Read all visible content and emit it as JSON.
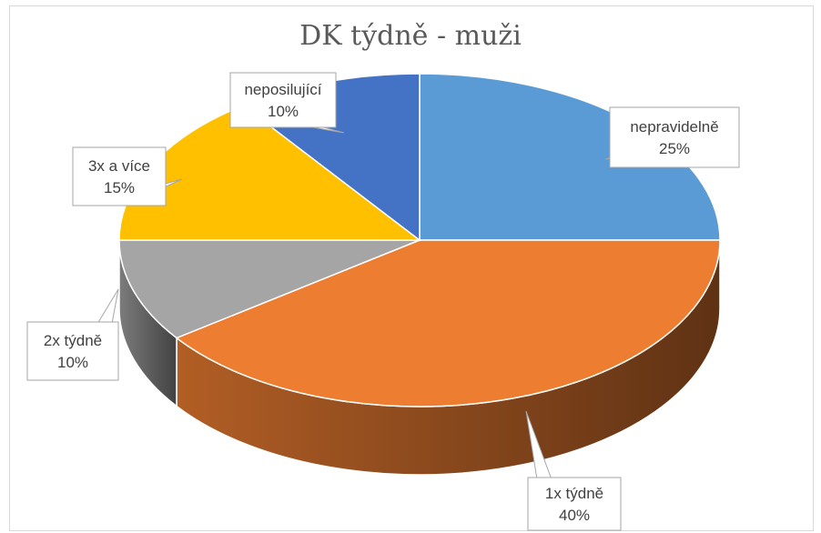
{
  "chart_data": {
    "type": "pie",
    "title": "DK týdně - muži",
    "slices": [
      {
        "label": "nepravidelně",
        "value": 25,
        "percent_label": "25%",
        "color": "#5b9bd5"
      },
      {
        "label": "1x týdně",
        "value": 40,
        "percent_label": "40%",
        "color": "#ed7d31"
      },
      {
        "label": "2x týdně",
        "value": 10,
        "percent_label": "10%",
        "color": "#a5a5a5"
      },
      {
        "label": "3x a více",
        "value": 15,
        "percent_label": "15%",
        "color": "#ffc000"
      },
      {
        "label": "neposilující",
        "value": 10,
        "percent_label": "10%",
        "color": "#4472c4"
      }
    ]
  }
}
